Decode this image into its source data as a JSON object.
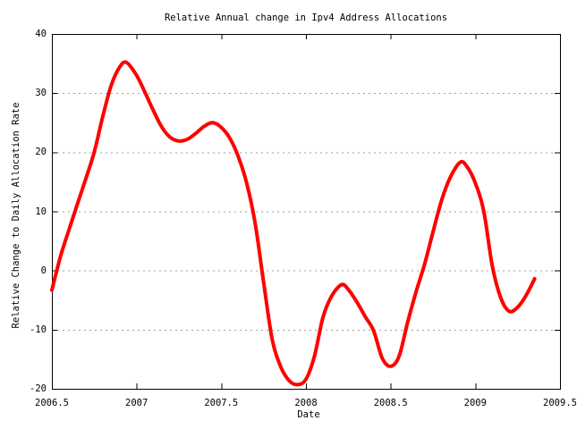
{
  "chart_data": {
    "type": "line",
    "title": "Relative Annual change in Ipv4 Address Allocations",
    "xlabel": "Date",
    "ylabel": "Relative Change to Daily Allocation Rate",
    "xlim": [
      2006.5,
      2009.5
    ],
    "ylim": [
      -20,
      40
    ],
    "xticks": [
      2006.5,
      2007,
      2007.5,
      2008,
      2008.5,
      2009,
      2009.5
    ],
    "xtick_labels": [
      "2006.5",
      "2007",
      "2007.5",
      "2008",
      "2008.5",
      "2009",
      "2009.5"
    ],
    "yticks": [
      -20,
      -10,
      0,
      10,
      20,
      30,
      40
    ],
    "ytick_labels": [
      "-20",
      "-10",
      "0",
      "10",
      "20",
      "30",
      "40"
    ],
    "grid": "horizontal-dashed",
    "legend": "none",
    "series": [
      {
        "name": "relative-annual-change",
        "color": "#ff0000",
        "linewidth": 4,
        "points": [
          [
            2006.5,
            -3.3
          ],
          [
            2006.55,
            2.3
          ],
          [
            2006.6,
            6.8
          ],
          [
            2006.65,
            11.2
          ],
          [
            2006.7,
            15.5
          ],
          [
            2006.75,
            20
          ],
          [
            2006.8,
            26
          ],
          [
            2006.85,
            31.3
          ],
          [
            2006.9,
            34.4
          ],
          [
            2006.94,
            35.2
          ],
          [
            2007,
            33
          ],
          [
            2007.05,
            30.1
          ],
          [
            2007.1,
            27
          ],
          [
            2007.15,
            24.2
          ],
          [
            2007.2,
            22.5
          ],
          [
            2007.25,
            21.9
          ],
          [
            2007.3,
            22.2
          ],
          [
            2007.35,
            23.2
          ],
          [
            2007.4,
            24.4
          ],
          [
            2007.45,
            25
          ],
          [
            2007.5,
            24.2
          ],
          [
            2007.55,
            22.4
          ],
          [
            2007.6,
            19.3
          ],
          [
            2007.65,
            14.8
          ],
          [
            2007.7,
            8
          ],
          [
            2007.75,
            -2
          ],
          [
            2007.8,
            -11.5
          ],
          [
            2007.85,
            -16.2
          ],
          [
            2007.9,
            -18.6
          ],
          [
            2007.95,
            -19.3
          ],
          [
            2008,
            -18.4
          ],
          [
            2008.05,
            -14.5
          ],
          [
            2008.1,
            -8
          ],
          [
            2008.15,
            -4.4
          ],
          [
            2008.21,
            -2.4
          ],
          [
            2008.25,
            -3.2
          ],
          [
            2008.3,
            -5.3
          ],
          [
            2008.35,
            -7.8
          ],
          [
            2008.4,
            -10.2
          ],
          [
            2008.45,
            -14.8
          ],
          [
            2008.5,
            -16.2
          ],
          [
            2008.55,
            -14.5
          ],
          [
            2008.6,
            -8.8
          ],
          [
            2008.65,
            -3.6
          ],
          [
            2008.7,
            1
          ],
          [
            2008.75,
            6.5
          ],
          [
            2008.8,
            11.8
          ],
          [
            2008.85,
            15.6
          ],
          [
            2008.91,
            18.3
          ],
          [
            2008.95,
            17.6
          ],
          [
            2009,
            14.8
          ],
          [
            2009.05,
            10
          ],
          [
            2009.1,
            0.8
          ],
          [
            2009.15,
            -4.6
          ],
          [
            2009.2,
            -6.9
          ],
          [
            2009.25,
            -6.2
          ],
          [
            2009.3,
            -4.2
          ],
          [
            2009.35,
            -1.4
          ]
        ]
      }
    ]
  },
  "colors": {
    "background": "#ffffff",
    "border": "#000000",
    "grid": "#9e9e9e",
    "curve": "#ff0000",
    "text": "#000000"
  }
}
